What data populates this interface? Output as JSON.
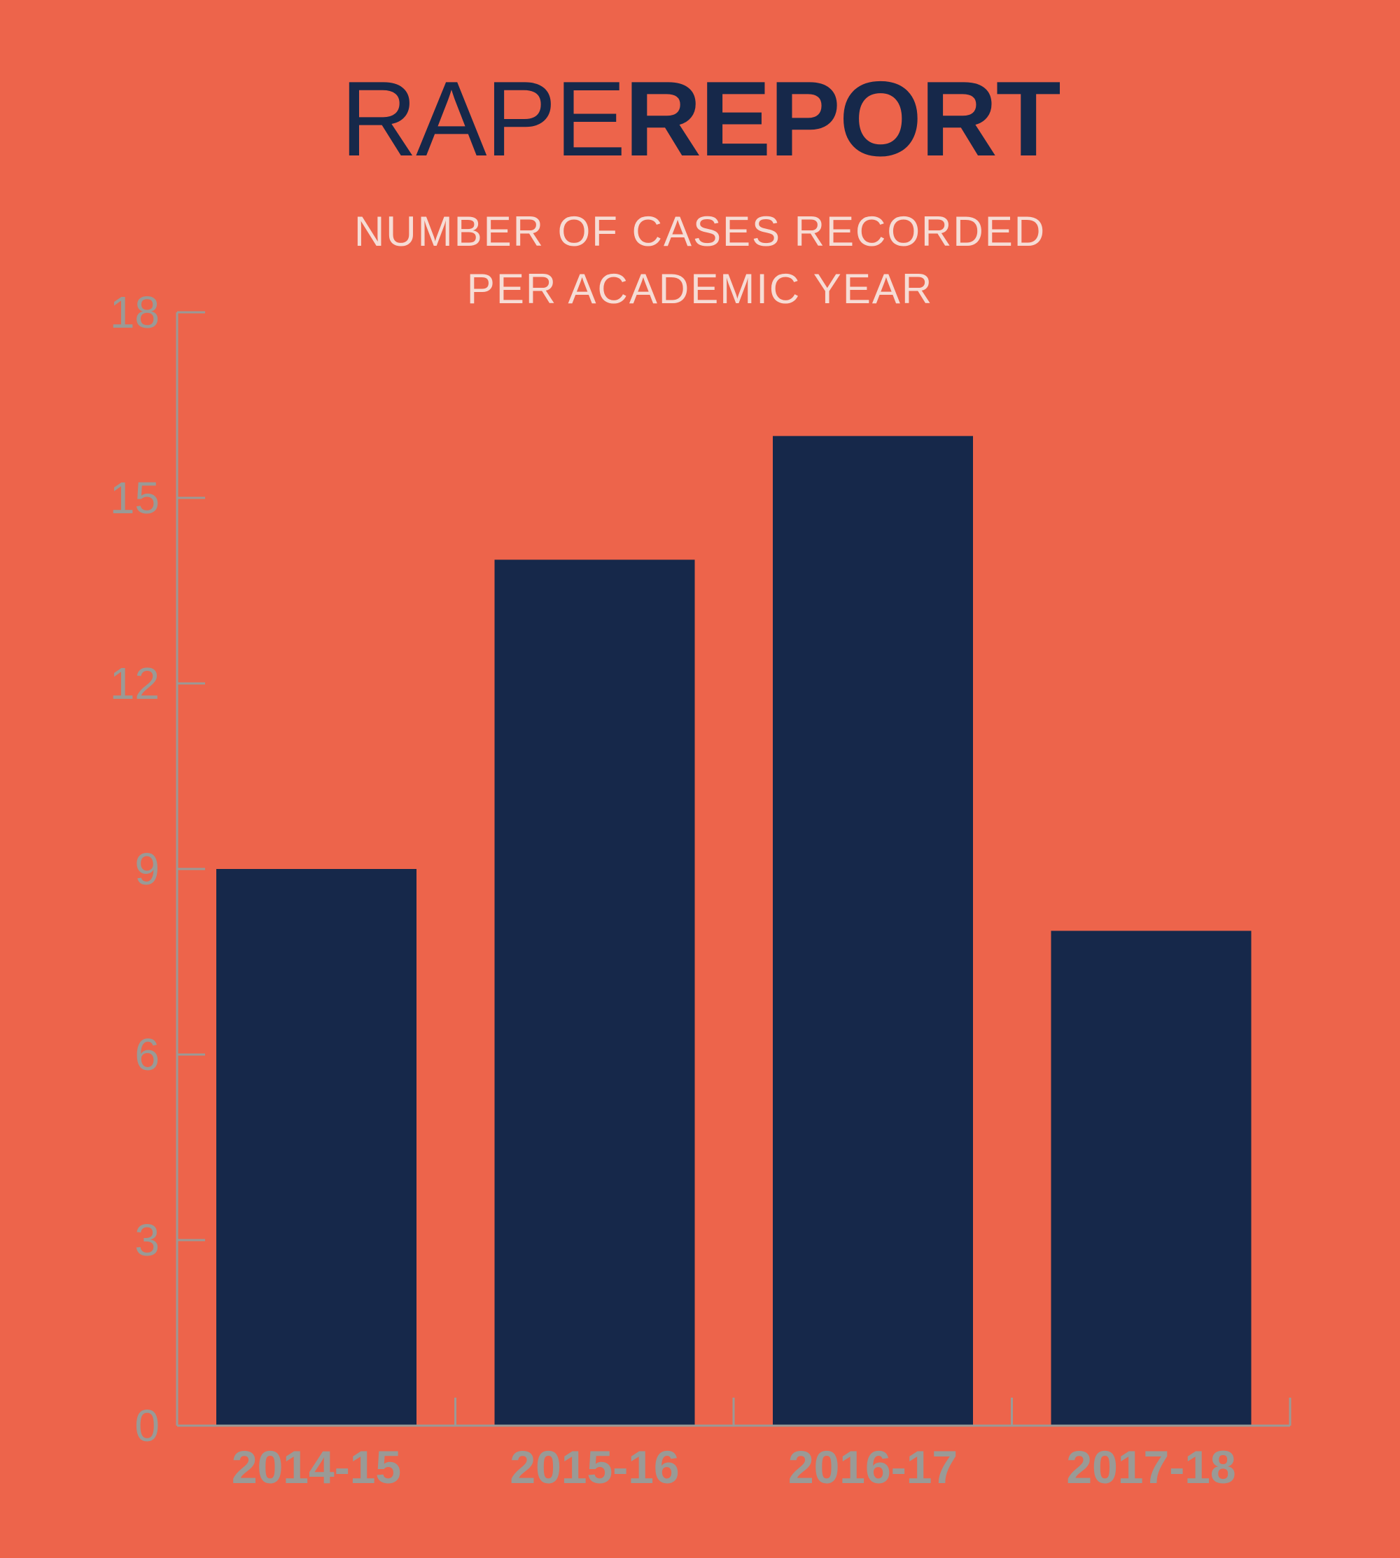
{
  "header": {
    "title_light": "RAPE",
    "title_bold": "REPORT",
    "subtitle_line1": "NUMBER OF CASES RECORDED",
    "subtitle_line2": "PER ACADEMIC YEAR"
  },
  "colors": {
    "background": "#ed644b",
    "bar": "#16284a",
    "axis": "#9a9a96",
    "tick_label": "#9a9a96",
    "subtitle": "#f6dcd5"
  },
  "chart_data": {
    "type": "bar",
    "title": "RAPEREPORT",
    "subtitle": "NUMBER OF CASES RECORDED PER ACADEMIC YEAR",
    "xlabel": "",
    "ylabel": "",
    "categories": [
      "2014-15",
      "2015-16",
      "2016-17",
      "2017-18"
    ],
    "values": [
      9,
      14,
      16,
      8
    ],
    "ylim": [
      0,
      18
    ],
    "yticks": [
      0,
      3,
      6,
      9,
      12,
      15,
      18
    ],
    "grid": false,
    "legend": "none"
  }
}
